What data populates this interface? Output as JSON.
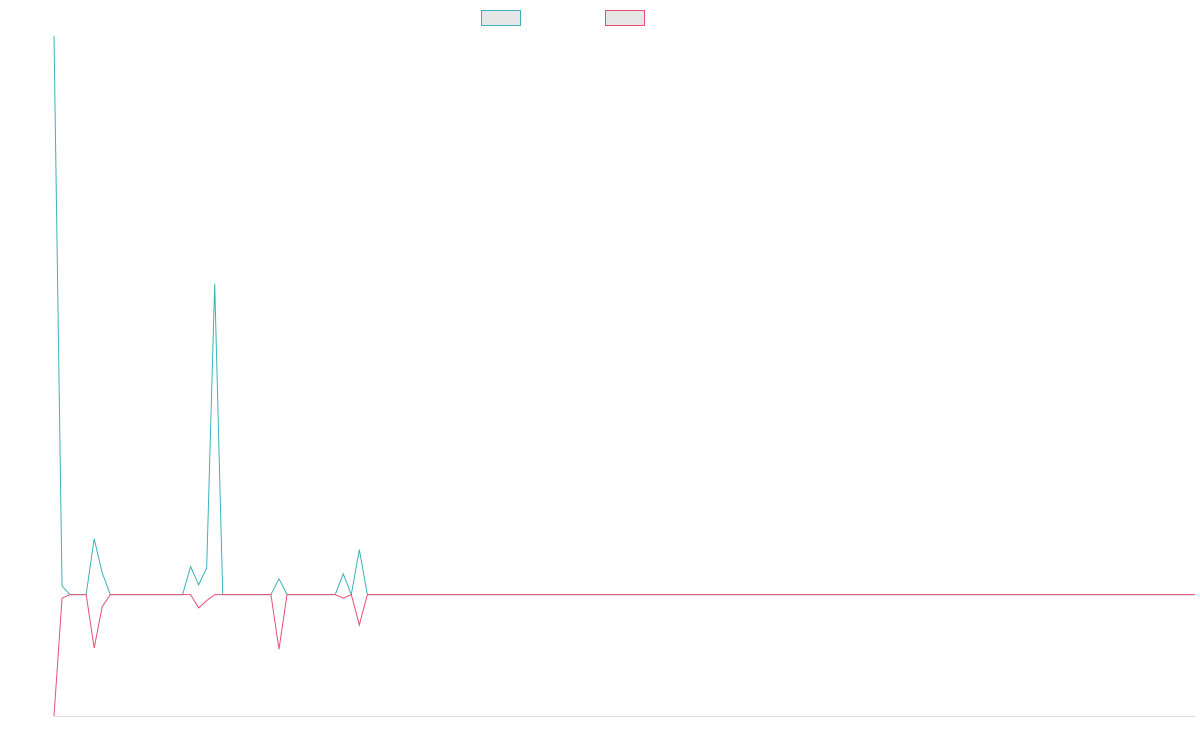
{
  "colors": {
    "series_1": "#3bb3b8",
    "series_2": "#e94f72",
    "legend_fill": "#e6e6e6",
    "axis": "#dddddd"
  },
  "chart_data": {
    "type": "line",
    "title": "",
    "xlabel": "",
    "ylabel": "",
    "grid": false,
    "legend_position": "top-center",
    "x_axis_visible": true,
    "y_axis_visible": false,
    "x_count": 143,
    "ylim": [
      -1.0,
      4.6
    ],
    "series": [
      {
        "color": "#3bb3b8",
        "points": [
          [
            0,
            4.6
          ],
          [
            1,
            0.07
          ],
          [
            2,
            0
          ],
          [
            3,
            0
          ],
          [
            4,
            0
          ],
          [
            5,
            0.46
          ],
          [
            6,
            0.18
          ],
          [
            7,
            0
          ],
          [
            8,
            0
          ],
          [
            9,
            0
          ],
          [
            10,
            0
          ],
          [
            11,
            0
          ],
          [
            12,
            0
          ],
          [
            13,
            0
          ],
          [
            14,
            0
          ],
          [
            15,
            0
          ],
          [
            16,
            0
          ],
          [
            17,
            0.23
          ],
          [
            18,
            0.08
          ],
          [
            19,
            0.22
          ],
          [
            20,
            2.56
          ],
          [
            21,
            0
          ],
          [
            22,
            0
          ],
          [
            23,
            0
          ],
          [
            24,
            0
          ],
          [
            25,
            0
          ],
          [
            26,
            0
          ],
          [
            27,
            0
          ],
          [
            28,
            0.13
          ],
          [
            29,
            0
          ],
          [
            30,
            0
          ],
          [
            31,
            0
          ],
          [
            32,
            0
          ],
          [
            33,
            0
          ],
          [
            34,
            0
          ],
          [
            35,
            0
          ],
          [
            36,
            0.17
          ],
          [
            37,
            0
          ],
          [
            38,
            0.37
          ],
          [
            39,
            0
          ],
          [
            142,
            0
          ]
        ]
      },
      {
        "color": "#e94f72",
        "points": [
          [
            0,
            -1.0
          ],
          [
            1,
            -0.03
          ],
          [
            2,
            0
          ],
          [
            3,
            0
          ],
          [
            4,
            0
          ],
          [
            5,
            -0.44
          ],
          [
            6,
            -0.1
          ],
          [
            7,
            0
          ],
          [
            8,
            0
          ],
          [
            9,
            0
          ],
          [
            10,
            0
          ],
          [
            11,
            0
          ],
          [
            12,
            0
          ],
          [
            13,
            0
          ],
          [
            14,
            0
          ],
          [
            15,
            0
          ],
          [
            16,
            0
          ],
          [
            17,
            0
          ],
          [
            18,
            -0.11
          ],
          [
            19,
            -0.05
          ],
          [
            20,
            0
          ],
          [
            21,
            0
          ],
          [
            22,
            0
          ],
          [
            23,
            0
          ],
          [
            24,
            0
          ],
          [
            25,
            0
          ],
          [
            26,
            0
          ],
          [
            27,
            0
          ],
          [
            28,
            -0.45
          ],
          [
            29,
            0
          ],
          [
            30,
            0
          ],
          [
            31,
            0
          ],
          [
            32,
            0
          ],
          [
            33,
            0
          ],
          [
            34,
            0
          ],
          [
            35,
            0
          ],
          [
            36,
            -0.03
          ],
          [
            37,
            0
          ],
          [
            38,
            -0.25
          ],
          [
            39,
            0
          ],
          [
            142,
            0
          ]
        ]
      }
    ]
  }
}
